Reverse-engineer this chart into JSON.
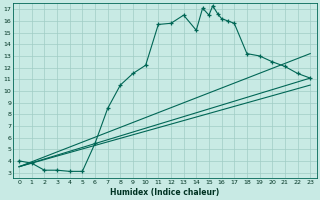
{
  "xlabel": "Humidex (Indice chaleur)",
  "bg_color": "#c8eae4",
  "grid_color": "#a0cdc5",
  "line_color": "#006655",
  "xlim": [
    -0.5,
    23.5
  ],
  "ylim": [
    2.5,
    17.5
  ],
  "xticks": [
    0,
    1,
    2,
    3,
    4,
    5,
    6,
    7,
    8,
    9,
    10,
    11,
    12,
    13,
    14,
    15,
    16,
    17,
    18,
    19,
    20,
    21,
    22,
    23
  ],
  "yticks": [
    3,
    4,
    5,
    6,
    7,
    8,
    9,
    10,
    11,
    12,
    13,
    14,
    15,
    16,
    17
  ],
  "curve_x": [
    0,
    1,
    2,
    3,
    4,
    5,
    6,
    7,
    8,
    9,
    10,
    11,
    12,
    13,
    14,
    14.5,
    15,
    15.3,
    15.7,
    16,
    16.5,
    17,
    18,
    19,
    20,
    21,
    22,
    23
  ],
  "curve_y": [
    4.0,
    3.8,
    3.2,
    3.2,
    3.1,
    3.1,
    5.5,
    8.5,
    10.5,
    11.5,
    12.2,
    15.7,
    15.8,
    16.5,
    15.2,
    17.1,
    16.5,
    17.3,
    16.6,
    16.2,
    16.0,
    15.8,
    13.2,
    13.0,
    12.5,
    12.1,
    11.5,
    11.1
  ],
  "line1_x": [
    0,
    23
  ],
  "line1_y": [
    3.5,
    13.2
  ],
  "line2_x": [
    0,
    23
  ],
  "line2_y": [
    3.5,
    11.1
  ],
  "line3_x": [
    0,
    23
  ],
  "line3_y": [
    3.5,
    10.5
  ]
}
